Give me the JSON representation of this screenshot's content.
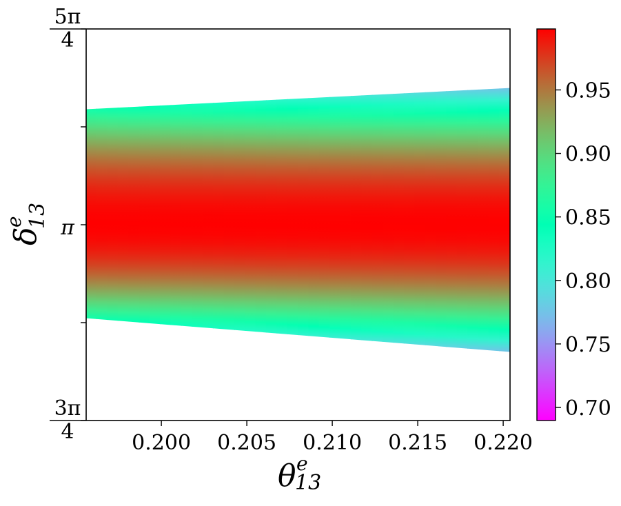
{
  "chart_data": {
    "type": "heatmap",
    "title": "",
    "xlabel": {
      "symbol": "θ",
      "sup": "e",
      "sub": "13"
    },
    "ylabel": {
      "symbol": "δ",
      "sup": "e",
      "sub": "13"
    },
    "xlim": [
      0.1956,
      0.2204
    ],
    "ylim": [
      2.35619,
      3.92699
    ],
    "x_ticks": [
      {
        "value": 0.2,
        "label": "0.200"
      },
      {
        "value": 0.205,
        "label": "0.205"
      },
      {
        "value": 0.21,
        "label": "0.210"
      },
      {
        "value": 0.215,
        "label": "0.215"
      },
      {
        "value": 0.22,
        "label": "0.220"
      }
    ],
    "y_ticks": [
      {
        "value": 2.35619,
        "label": "3π/4",
        "num": "3π",
        "den": "4"
      },
      {
        "value": 2.74889,
        "label": ""
      },
      {
        "value": 3.14159,
        "label": "π"
      },
      {
        "value": 3.53429,
        "label": ""
      },
      {
        "value": 3.92699,
        "label": "5π/4",
        "num": "5π",
        "den": "4"
      }
    ],
    "region": {
      "x": [
        0.1956,
        0.2204
      ],
      "upper": [
        3.6048,
        3.6903
      ],
      "lower": [
        2.7666,
        2.6312
      ],
      "center": 3.1416,
      "edge_value_at_left": 0.855,
      "edge_value_at_right": 0.775,
      "center_value": 0.998
    },
    "colorbar": {
      "range": [
        0.6897,
        0.998
      ],
      "ticks": [
        {
          "value": 0.7,
          "label": "0.70"
        },
        {
          "value": 0.75,
          "label": "0.75"
        },
        {
          "value": 0.8,
          "label": "0.80"
        },
        {
          "value": 0.85,
          "label": "0.85"
        },
        {
          "value": 0.9,
          "label": "0.90"
        },
        {
          "value": 0.95,
          "label": "0.95"
        }
      ],
      "colormap": "rainbow"
    },
    "grid": false,
    "legend": "none"
  }
}
